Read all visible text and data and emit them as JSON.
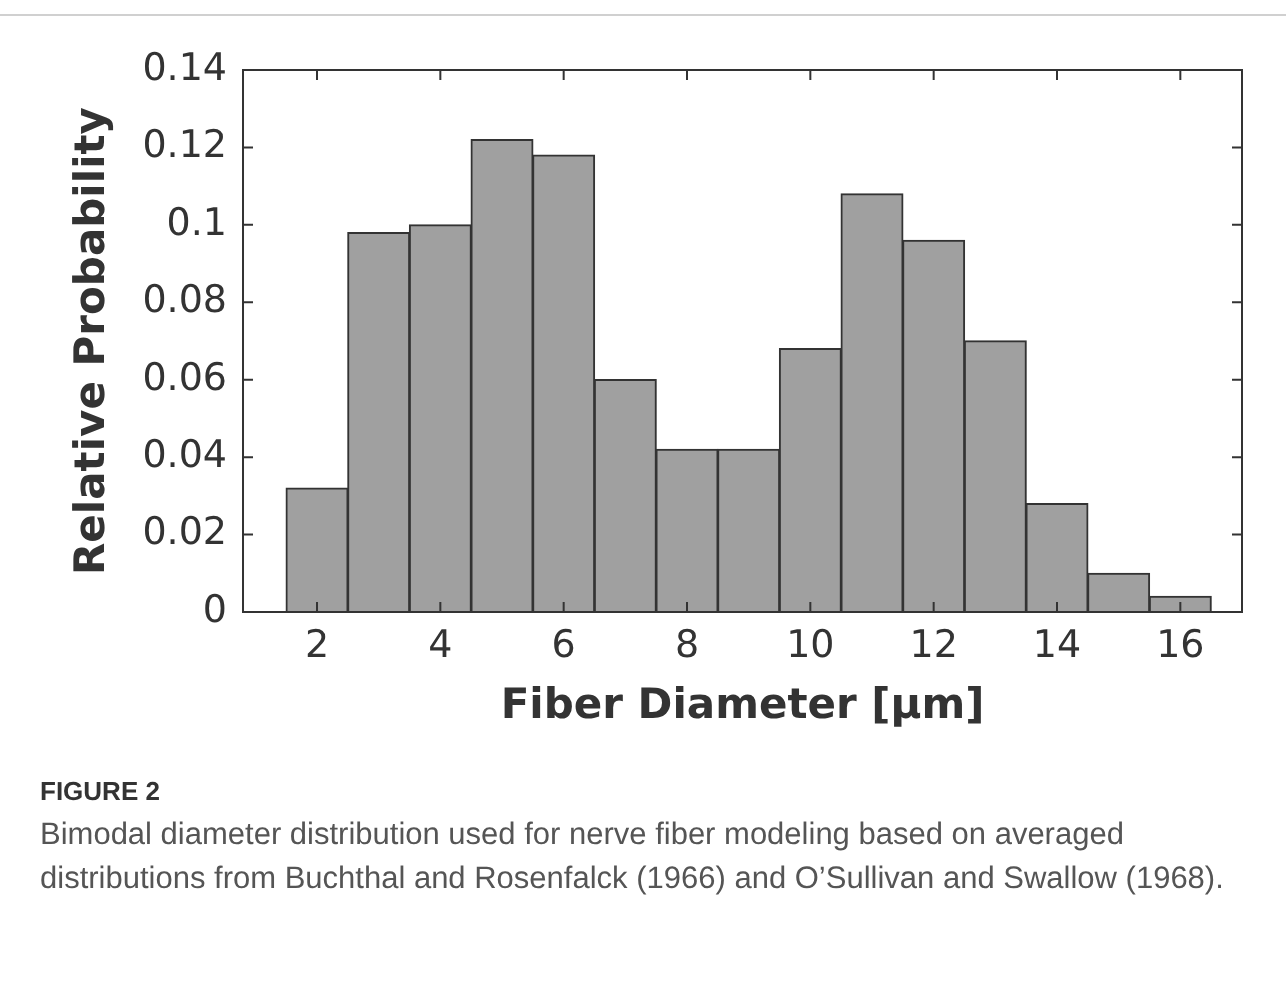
{
  "chart_data": {
    "type": "histogram",
    "xlabel": "Fiber Diameter [μm]",
    "ylabel": "Relative Probability",
    "bins": [
      1.5,
      2.5,
      3.5,
      4.5,
      5.5,
      6.5,
      7.5,
      8.5,
      9.5,
      10.5,
      11.5,
      12.5,
      13.5,
      14.5,
      15.5,
      16.5
    ],
    "values": [
      0.032,
      0.098,
      0.1,
      0.122,
      0.118,
      0.06,
      0.042,
      0.042,
      0.068,
      0.108,
      0.096,
      0.07,
      0.028,
      0.01,
      0.004
    ],
    "color": "#a0a0a0",
    "xlim": [
      0.8,
      17
    ],
    "xticks": [
      2,
      4,
      6,
      8,
      10,
      12,
      14,
      16
    ],
    "ylim": [
      0,
      0.14
    ],
    "yticks": [
      0,
      0.02,
      0.04,
      0.06,
      0.08,
      0.1,
      0.12,
      0.14
    ],
    "grid": false,
    "annotations": [
      "FIGURE 2",
      "Bimodal diameter distribution used for nerve fiber modeling based on averaged distributions from Buchthal and Rosenfalck (1966) and O’Sullivan and Swallow (1968)."
    ]
  }
}
